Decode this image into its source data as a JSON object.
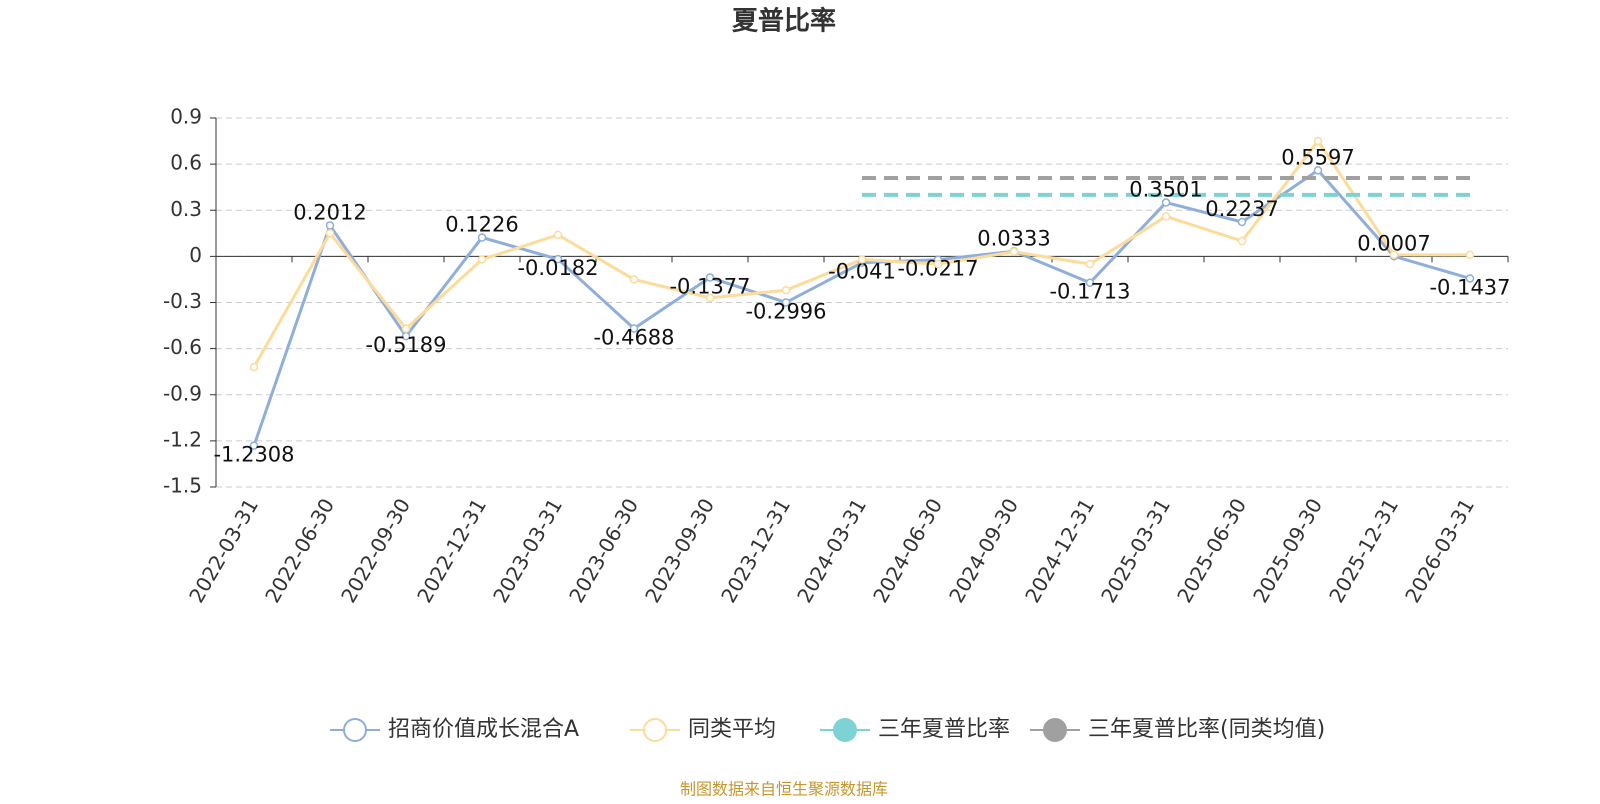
{
  "chart_data": {
    "type": "line",
    "title": "夏普比率",
    "categories": [
      "2022-03-31",
      "2022-06-30",
      "2022-09-30",
      "2022-12-31",
      "2023-03-31",
      "2023-06-30",
      "2023-09-30",
      "2023-12-31",
      "2024-03-31",
      "2024-06-30",
      "2024-09-30",
      "2024-12-31",
      "2025-03-31",
      "2025-06-30",
      "2025-09-30",
      "2025-12-31",
      "2026-03-31"
    ],
    "series": [
      {
        "name": "招商价值成长混合A",
        "color": "#8eaedb",
        "values": [
          -1.2308,
          0.2012,
          -0.5189,
          0.1226,
          -0.0182,
          -0.4688,
          -0.1377,
          -0.2996,
          -0.041,
          -0.0217,
          0.0333,
          -0.1713,
          0.3501,
          0.2237,
          0.5597,
          0.0007,
          -0.1437
        ]
      },
      {
        "name": "同类平均",
        "color": "#fddb9a",
        "values": [
          -0.72,
          0.15,
          -0.47,
          -0.02,
          0.14,
          -0.15,
          -0.27,
          -0.22,
          -0.02,
          -0.05,
          0.03,
          -0.05,
          0.26,
          0.1,
          0.75,
          0.01,
          0.01
        ]
      },
      {
        "name": "三年夏普比率",
        "color": "#7dd3d3",
        "values": [
          null,
          null,
          null,
          null,
          null,
          null,
          null,
          null,
          0.4,
          0.4,
          0.4,
          0.4,
          0.4,
          0.4,
          0.4,
          0.4,
          0.4
        ]
      },
      {
        "name": "三年夏普比率(同类均值)",
        "color": "#a0a0a0",
        "values": [
          null,
          null,
          null,
          null,
          null,
          null,
          null,
          null,
          0.51,
          0.51,
          0.51,
          0.51,
          0.51,
          0.51,
          0.51,
          0.51,
          0.51
        ]
      }
    ],
    "ylim": [
      -1.5,
      0.9
    ],
    "yticks": [
      0.9,
      0.6,
      0.3,
      0,
      -0.3,
      -0.6,
      -0.9,
      -1.2,
      -1.5
    ],
    "grid": true
  },
  "footer": "制图数据来自恒生聚源数据库"
}
